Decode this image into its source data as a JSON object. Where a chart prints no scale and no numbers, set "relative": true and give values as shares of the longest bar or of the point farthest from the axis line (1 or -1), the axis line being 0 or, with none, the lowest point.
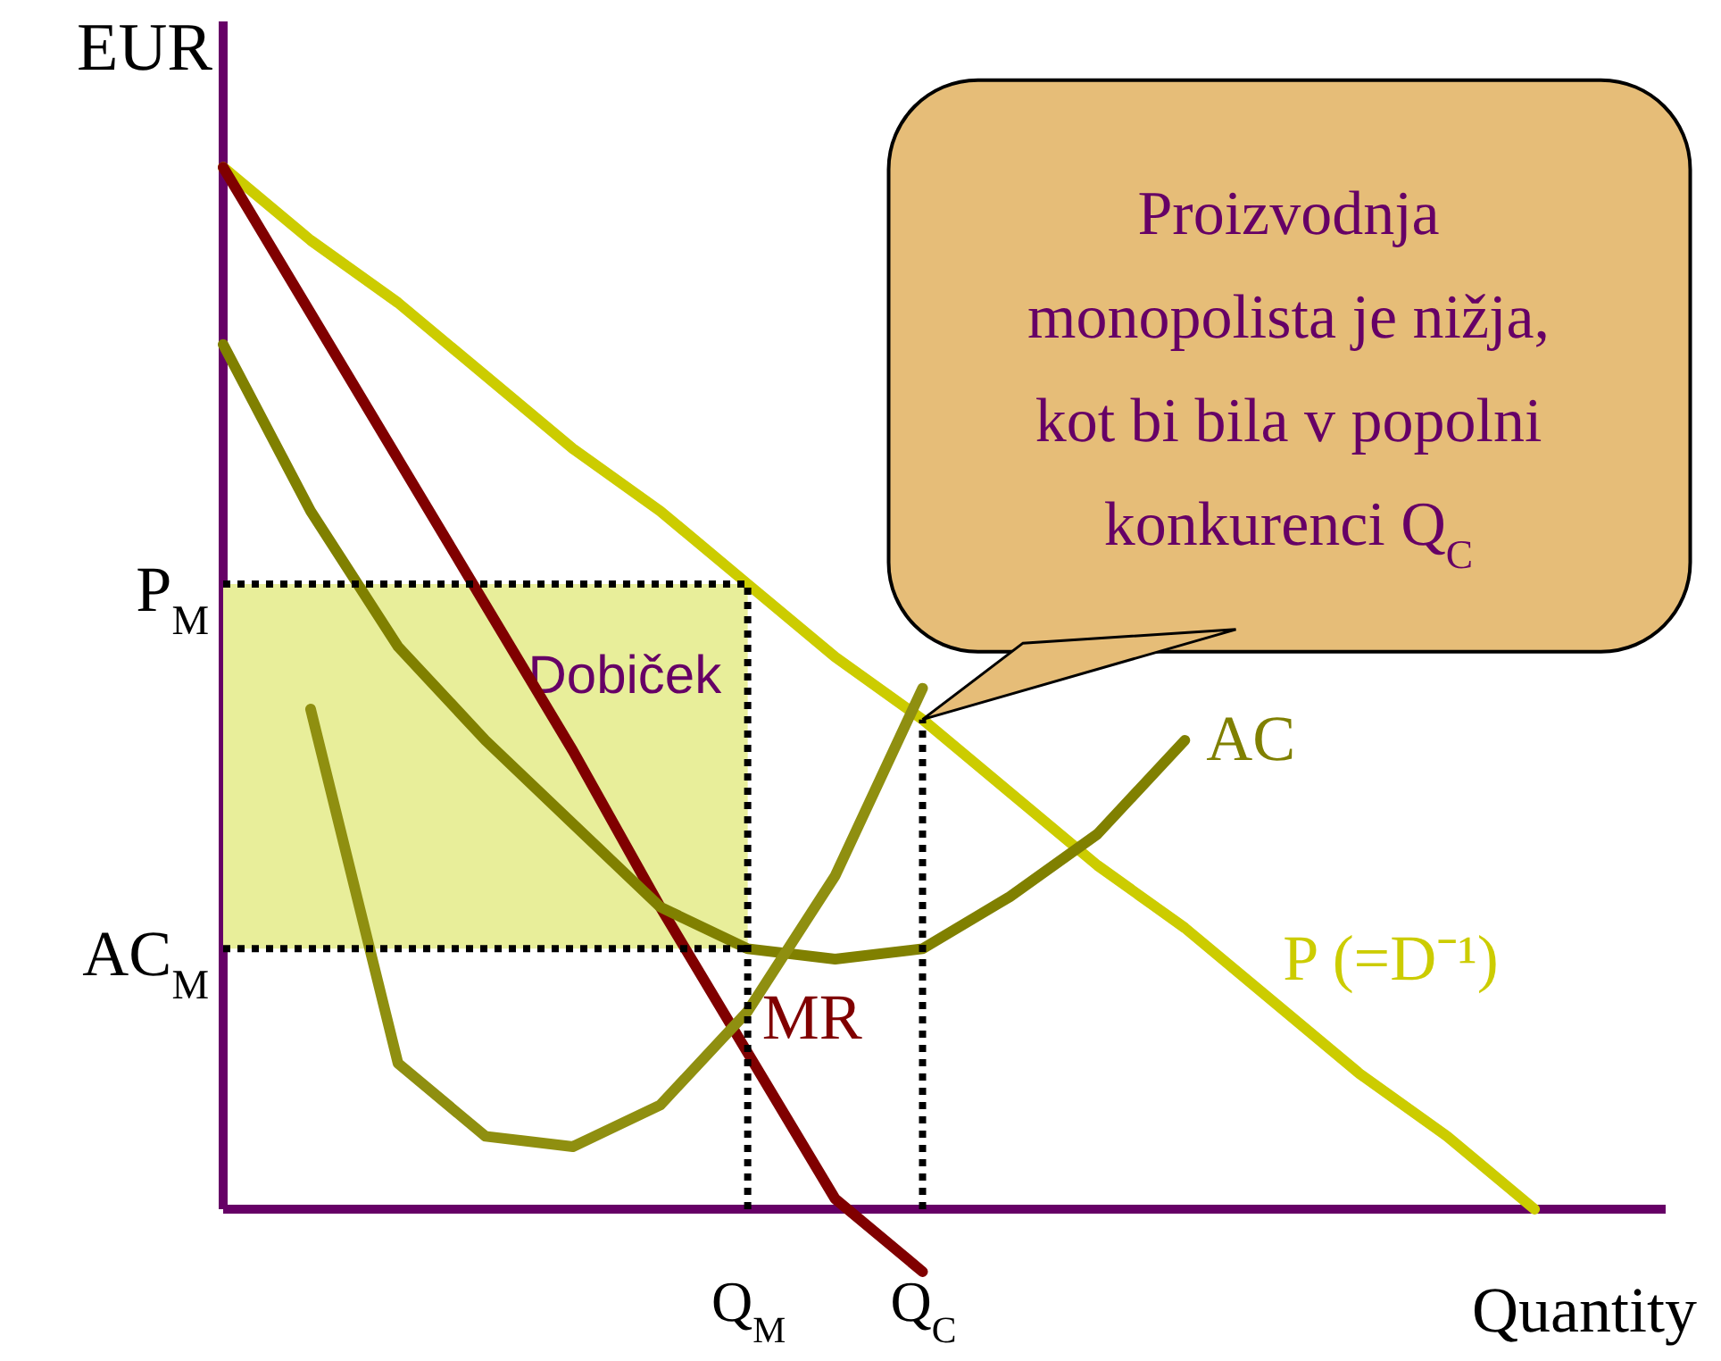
{
  "chart_data": {
    "type": "line",
    "relative": true,
    "ylabel": "EUR",
    "xlabel": "Quantity",
    "marker": "none",
    "categories": [
      null,
      null,
      null,
      null,
      null,
      null,
      "Q$_{M}$",
      null,
      "Q$_{C}$",
      null,
      null,
      null,
      null,
      null,
      null,
      null,
      null
    ],
    "series": [
      {
        "name": "P (=D⁻¹)",
        "color": "#cccc00",
        "values": [
          1,
          0.93,
          0.87,
          0.8,
          0.73,
          0.67,
          0.6,
          0.53,
          0.47,
          0.4,
          0.33,
          0.27,
          0.2,
          0.13,
          0.07,
          0,
          null
        ]
      },
      {
        "name": "MR",
        "color": "#800000",
        "values": [
          1,
          0.86,
          0.72,
          0.58,
          0.44,
          0.29,
          0.15,
          0.01,
          -0.06,
          null,
          null,
          null,
          null,
          null,
          null,
          null,
          null
        ]
      },
      {
        "name": "AC",
        "color": "#808000",
        "values": [
          0.83,
          0.67,
          0.54,
          0.45,
          0.37,
          0.29,
          0.25,
          0.24,
          0.25,
          0.3,
          0.36,
          0.45,
          null,
          null,
          null,
          null,
          null
        ]
      },
      {
        "color": "#8f8f10",
        "values": [
          null,
          0.48,
          0.14,
          0.07,
          0.06,
          0.1,
          0.19,
          0.32,
          0.5,
          null,
          null,
          null,
          null,
          null,
          null,
          null,
          null
        ]
      }
    ],
    "bands": [
      {
        "axis": "y",
        "from": 0.25,
        "to": 0.6,
        "label": "Dobiček",
        "color": "#e8ee9a"
      }
    ],
    "ref_lines": [
      {
        "axis": "x",
        "value": "Q$_{M}$",
        "line_style": "dotted"
      },
      {
        "axis": "x",
        "value": "Q$_{C}$",
        "line_style": "dotted"
      },
      {
        "axis": "y",
        "value": 0.6,
        "label": "P$_{M}$",
        "line_style": "dotted"
      },
      {
        "axis": "y",
        "value": 0.25,
        "label": "AC$_{M}$",
        "line_style": "dotted"
      }
    ],
    "annotations": [
      {
        "text": "Proizvodnja\nmonopolista je nižja,\nkot bi bila v popolni\nkonkurenci Q$_{C}$",
        "x": "Q$_{C}$",
        "y": 0.47
      }
    ]
  }
}
